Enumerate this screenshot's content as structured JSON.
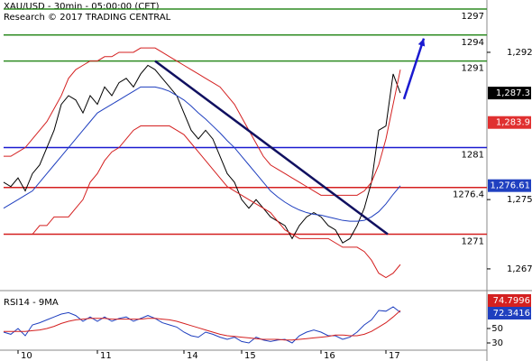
{
  "chart_data": {
    "type": "line",
    "title": "XAU/USD - 30min - 05:00:00 (CET)",
    "subtitle": "Research © 2017 TRADING CENTRAL",
    "xlim": [
      0,
      67
    ],
    "xticks": [
      {
        "value": 2,
        "label": "10"
      },
      {
        "value": 13,
        "label": "11"
      },
      {
        "value": 25,
        "label": "14"
      },
      {
        "value": 33,
        "label": "15"
      },
      {
        "value": 44,
        "label": "16"
      },
      {
        "value": 53,
        "label": "17"
      }
    ],
    "ylim": [
      1264.7,
      1298.04
    ],
    "yticks": [
      {
        "value": 1292,
        "label": "1,292"
      },
      {
        "value": 1275,
        "label": "1,275"
      },
      {
        "value": 1267,
        "label": "1,267"
      }
    ],
    "series": [
      {
        "name": "Price",
        "color": "#000000",
        "values": [
          1277,
          1276.5,
          1277.5,
          1276,
          1278,
          1279,
          1281,
          1283,
          1286,
          1287,
          1286.5,
          1285,
          1287,
          1286,
          1288,
          1287,
          1288.5,
          1289,
          1288,
          1289.5,
          1290.5,
          1290,
          1289,
          1288,
          1287,
          1285,
          1283,
          1282,
          1283,
          1282,
          1280,
          1278,
          1277,
          1275,
          1274,
          1275,
          1274,
          1273,
          1272.5,
          1272,
          1270.5,
          1272,
          1273,
          1273.5,
          1273,
          1272,
          1271.5,
          1270,
          1270.5,
          1272,
          1274,
          1277,
          1283,
          1283.5,
          1289.5,
          1287.3
        ]
      },
      {
        "name": "MA",
        "color": "#1f3fbf",
        "values": [
          1274,
          1274.5,
          1275,
          1275.5,
          1276,
          1277,
          1278,
          1279,
          1280,
          1281,
          1282,
          1283,
          1284,
          1285,
          1285.5,
          1286,
          1286.5,
          1287,
          1287.5,
          1288,
          1288,
          1288,
          1287.8,
          1287.5,
          1287,
          1286.5,
          1285.8,
          1285,
          1284.3,
          1283.5,
          1282.7,
          1281.8,
          1281,
          1280,
          1279,
          1278,
          1277,
          1276,
          1275.3,
          1274.7,
          1274.2,
          1273.8,
          1273.5,
          1273.3,
          1273.2,
          1273,
          1272.8,
          1272.6,
          1272.5,
          1272.5,
          1272.6,
          1273,
          1273.6,
          1274.5,
          1275.6,
          1276.6
        ]
      },
      {
        "name": "Upper band",
        "color": "#d42020",
        "values": [
          1280,
          1280,
          1280.5,
          1281,
          1282,
          1283,
          1284,
          1285.5,
          1287,
          1289,
          1290,
          1290.5,
          1291,
          1291,
          1291.5,
          1291.5,
          1292,
          1292,
          1292,
          1292.5,
          1292.5,
          1292.5,
          1292,
          1291.5,
          1291,
          1290.5,
          1290,
          1289.5,
          1289,
          1288.5,
          1288,
          1287,
          1286,
          1284.5,
          1283,
          1281.5,
          1280,
          1279,
          1278.5,
          1278,
          1277.5,
          1277,
          1276.5,
          1276,
          1275.5,
          1275.5,
          1275.5,
          1275.5,
          1275.5,
          1275.5,
          1276,
          1277,
          1279,
          1282,
          1286,
          1290
        ]
      },
      {
        "name": "Lower band",
        "color": "#d42020",
        "values": [
          1271,
          1271,
          1271,
          1271,
          1271,
          1272,
          1272,
          1273,
          1273,
          1273,
          1274,
          1275,
          1277,
          1278,
          1279.5,
          1280.5,
          1281,
          1282,
          1283,
          1283.5,
          1283.5,
          1283.5,
          1283.5,
          1283.5,
          1283,
          1282.5,
          1281.5,
          1280.5,
          1279.5,
          1278.5,
          1277.5,
          1276.5,
          1276,
          1275.5,
          1275,
          1274.5,
          1274,
          1273.5,
          1272.5,
          1271.5,
          1271,
          1270.5,
          1270.5,
          1270.5,
          1270.5,
          1270.5,
          1270,
          1269.5,
          1269.5,
          1269.5,
          1269,
          1268,
          1266.5,
          1266,
          1266.5,
          1267.5
        ]
      }
    ],
    "levels": [
      {
        "value": 1297,
        "color": "#2e8b22"
      },
      {
        "value": 1294,
        "color": "#2e8b22"
      },
      {
        "value": 1291,
        "color": "#2e8b22"
      },
      {
        "value": 1281,
        "color": "#1a1ad0"
      },
      {
        "value": 1276.4,
        "color": "#d42020"
      },
      {
        "value": 1271,
        "color": "#d42020"
      }
    ],
    "price_tags": [
      {
        "value": 1287.3,
        "label": "1,287.3",
        "color": "#000000"
      },
      {
        "value": 1283.9,
        "label": "1,283.9",
        "color": "#e03030"
      },
      {
        "value": 1276.61,
        "label": "1,276.61",
        "color": "#2040c0"
      }
    ],
    "trendline": {
      "color": "#101060",
      "x": [
        21,
        53.25
      ],
      "y": [
        1291,
        1271
      ]
    },
    "arrow": {
      "color": "#1a1ad0",
      "x": [
        55.5,
        58.25
      ],
      "y": [
        1286.6,
        1293.6
      ]
    },
    "rsi": {
      "title": "RSI14 - 9MA",
      "ylim": [
        20,
        95
      ],
      "yticks": [
        50,
        30
      ],
      "series": [
        {
          "name": "RSI14",
          "color": "#1f3fbf",
          "values": [
            45,
            42,
            50,
            40,
            55,
            58,
            62,
            66,
            70,
            72,
            68,
            60,
            66,
            60,
            66,
            60,
            64,
            66,
            60,
            64,
            68,
            64,
            58,
            55,
            52,
            45,
            40,
            38,
            45,
            42,
            38,
            35,
            38,
            32,
            30,
            38,
            34,
            32,
            34,
            35,
            30,
            40,
            45,
            48,
            45,
            40,
            40,
            35,
            38,
            45,
            55,
            62,
            75,
            74,
            80,
            72.3416
          ]
        },
        {
          "name": "9MA",
          "color": "#d42020",
          "values": [
            46,
            46,
            46,
            46,
            47,
            48,
            50,
            53,
            57,
            60,
            62,
            63,
            64,
            64,
            64,
            63,
            63,
            63,
            63,
            63,
            64,
            64,
            63,
            62,
            60,
            57,
            54,
            51,
            48,
            45,
            42,
            40,
            39,
            38,
            37,
            36,
            35,
            35,
            35,
            34,
            34,
            35,
            36,
            37,
            38,
            39,
            41,
            41,
            40,
            40,
            42,
            46,
            52,
            58,
            66,
            74.7996
          ]
        }
      ]
    }
  }
}
